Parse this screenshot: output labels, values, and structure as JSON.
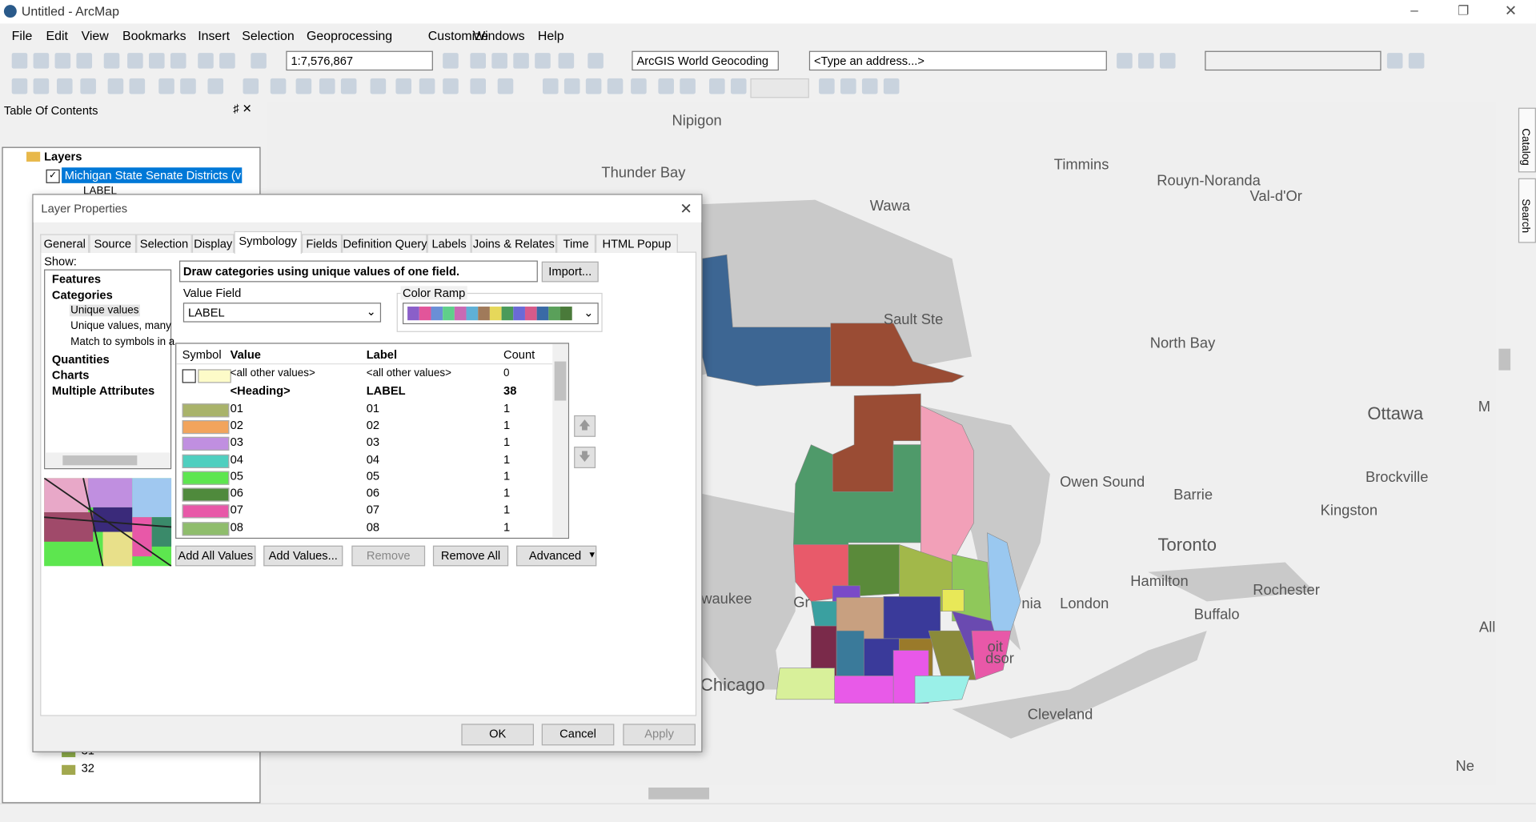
{
  "window": {
    "title": "Untitled - ArcMap"
  },
  "menu": [
    "File",
    "Edit",
    "View",
    "Bookmarks",
    "Insert",
    "Selection",
    "Geoprocessing",
    "Customize",
    "Windows",
    "Help"
  ],
  "toolbar": {
    "scale": "1:7,576,867",
    "geocoder": "ArcGIS World Geocoding",
    "address": "<Type an address...>"
  },
  "toc": {
    "title": "Table Of Contents",
    "root": "Layers",
    "layer": "Michigan State Senate Districts (v",
    "sublabel": "LABEL",
    "bottom_items": [
      {
        "label": "31",
        "color": "#8fae4a"
      },
      {
        "label": "32",
        "color": "#a2a84e"
      }
    ]
  },
  "side_tabs": [
    "Catalog",
    "Search"
  ],
  "dialog": {
    "title": "Layer Properties",
    "tabs": [
      "General",
      "Source",
      "Selection",
      "Display",
      "Symbology",
      "Fields",
      "Definition Query",
      "Labels",
      "Joins & Relates",
      "Time",
      "HTML Popup"
    ],
    "active_tab": 4,
    "show_label": "Show:",
    "show_tree": [
      {
        "text": "Features",
        "level": 0
      },
      {
        "text": "Categories",
        "level": 0
      },
      {
        "text": "Unique values",
        "level": 1
      },
      {
        "text": "Unique values, many",
        "level": 1
      },
      {
        "text": "Match to symbols in a",
        "level": 1
      },
      {
        "text": "Quantities",
        "level": 0
      },
      {
        "text": "Charts",
        "level": 0
      },
      {
        "text": "Multiple Attributes",
        "level": 0
      }
    ],
    "selected_tree_item": 2,
    "description": "Draw categories using unique values of one field.",
    "import": "Import...",
    "value_field_label": "Value Field",
    "value_field": "LABEL",
    "color_ramp_label": "Color Ramp",
    "color_ramp": [
      "#8a5fc9",
      "#e2559a",
      "#6a8fd6",
      "#5fcf8a",
      "#c86ab4",
      "#5fb0d6",
      "#a07a5a",
      "#e6d85a",
      "#4a9a5a",
      "#6a6ad6",
      "#d65a8a",
      "#3a6aa6",
      "#5aa05a",
      "#4a7a3a"
    ],
    "table": {
      "columns": [
        "Symbol",
        "Value",
        "Label",
        "Count"
      ],
      "rows": [
        {
          "color": "#fdfbc8",
          "value": "<all other values>",
          "label": "<all other values>",
          "count": 0
        },
        {
          "color": null,
          "value": "<Heading>",
          "label": "LABEL",
          "count": 38
        },
        {
          "color": "#a9b36a",
          "value": "01",
          "label": "01",
          "count": 1
        },
        {
          "color": "#f2a45c",
          "value": "02",
          "label": "02",
          "count": 1
        },
        {
          "color": "#c08fe0",
          "value": "03",
          "label": "03",
          "count": 1
        },
        {
          "color": "#4fcfbf",
          "value": "04",
          "label": "04",
          "count": 1
        },
        {
          "color": "#5de64f",
          "value": "05",
          "label": "05",
          "count": 1
        },
        {
          "color": "#4f8a3c",
          "value": "06",
          "label": "06",
          "count": 1
        },
        {
          "color": "#e858a8",
          "value": "07",
          "label": "07",
          "count": 1
        },
        {
          "color": "#8fbd6c",
          "value": "08",
          "label": "08",
          "count": 1
        }
      ]
    },
    "buttons": [
      "Add All Values",
      "Add Values...",
      "Remove",
      "Remove All",
      "Advanced"
    ],
    "footer": [
      "OK",
      "Cancel",
      "Apply"
    ]
  },
  "map": {
    "labels": [
      "Nipigon",
      "Thunder Bay",
      "Wawa",
      "Timmins",
      "Rouyn-Noranda",
      "Val-d'Or",
      "Sault Ste",
      "North Bay",
      "Ottawa",
      "M",
      "Owen Sound",
      "Brockville",
      "Barrie",
      "Kingston",
      "Toronto",
      "Hamilton",
      "Rochester",
      "waukee",
      "London",
      "nia",
      "Buffalo",
      "All",
      "Chicago",
      "Cleveland",
      "Ne",
      "Gr",
      "oit",
      "dsor"
    ]
  }
}
